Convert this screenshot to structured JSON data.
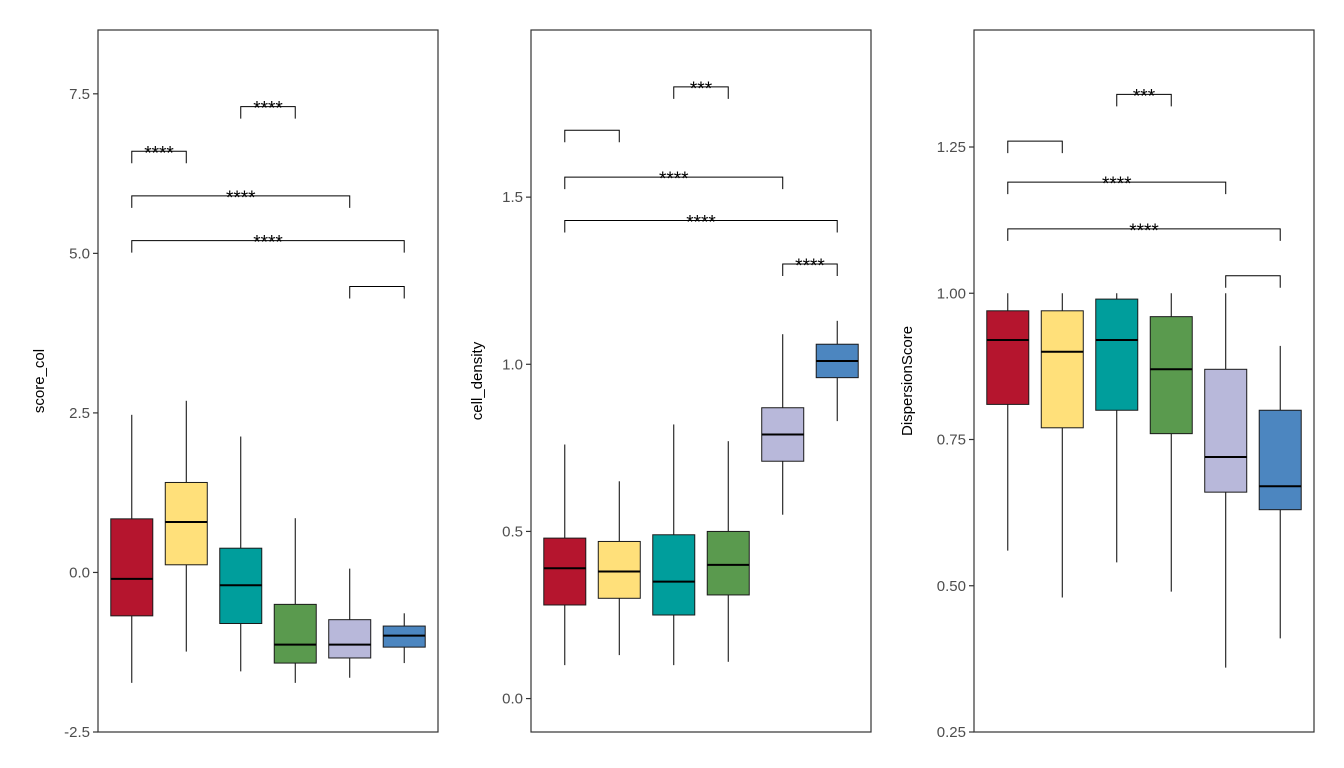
{
  "palette": [
    "#B5152E",
    "#FFE07A",
    "#009E9C",
    "#5A9A4E",
    "#B8B8DA",
    "#4C86C0"
  ],
  "chart_data": [
    {
      "type": "box",
      "ylabel": "score_col",
      "ylim": [
        -2.5,
        8.5
      ],
      "yticks": [
        -2.5,
        0.0,
        2.5,
        5.0,
        7.5
      ],
      "ytick_labels": [
        "-2.5",
        "0.0",
        "2.5",
        "5.0",
        "7.5"
      ],
      "boxes": [
        {
          "min": -1.73,
          "q1": -0.68,
          "median": -0.1,
          "q3": 0.84,
          "max": 2.47
        },
        {
          "min": -1.24,
          "q1": 0.12,
          "median": 0.79,
          "q3": 1.41,
          "max": 2.69
        },
        {
          "min": -1.55,
          "q1": -0.8,
          "median": -0.2,
          "q3": 0.38,
          "max": 2.13
        },
        {
          "min": -1.73,
          "q1": -1.42,
          "median": -1.13,
          "q3": -0.5,
          "max": 0.85
        },
        {
          "min": -1.65,
          "q1": -1.34,
          "median": -1.13,
          "q3": -0.74,
          "max": 0.06
        },
        {
          "min": -1.42,
          "q1": -1.17,
          "median": -0.99,
          "q3": -0.84,
          "max": -0.64
        }
      ],
      "comparisons": [
        {
          "from": 1,
          "to": 2,
          "y": 6.6,
          "label": "****"
        },
        {
          "from": 3,
          "to": 4,
          "y": 7.3,
          "label": "****"
        },
        {
          "from": 1,
          "to": 5,
          "y": 5.9,
          "label": "****"
        },
        {
          "from": 1,
          "to": 6,
          "y": 5.2,
          "label": "****"
        },
        {
          "from": 5,
          "to": 6,
          "y": 4.48,
          "label": ""
        }
      ]
    },
    {
      "type": "box",
      "ylabel": "cell_density",
      "ylim": [
        -0.1,
        2.0
      ],
      "yticks": [
        0.0,
        0.5,
        1.0,
        1.5
      ],
      "ytick_labels": [
        "0.0",
        "0.5",
        "1.0",
        "1.5"
      ],
      "boxes": [
        {
          "min": 0.1,
          "q1": 0.28,
          "median": 0.39,
          "q3": 0.48,
          "max": 0.76
        },
        {
          "min": 0.13,
          "q1": 0.3,
          "median": 0.38,
          "q3": 0.47,
          "max": 0.65
        },
        {
          "min": 0.1,
          "q1": 0.25,
          "median": 0.35,
          "q3": 0.49,
          "max": 0.82
        },
        {
          "min": 0.11,
          "q1": 0.31,
          "median": 0.4,
          "q3": 0.5,
          "max": 0.77
        },
        {
          "min": 0.55,
          "q1": 0.71,
          "median": 0.79,
          "q3": 0.87,
          "max": 1.09
        },
        {
          "min": 0.83,
          "q1": 0.96,
          "median": 1.01,
          "q3": 1.06,
          "max": 1.13
        }
      ],
      "comparisons": [
        {
          "from": 1,
          "to": 2,
          "y": 1.7,
          "label": ""
        },
        {
          "from": 3,
          "to": 4,
          "y": 1.83,
          "label": "***"
        },
        {
          "from": 1,
          "to": 5,
          "y": 1.56,
          "label": "****"
        },
        {
          "from": 1,
          "to": 6,
          "y": 1.43,
          "label": "****"
        },
        {
          "from": 5,
          "to": 6,
          "y": 1.3,
          "label": "****"
        }
      ]
    },
    {
      "type": "box",
      "ylabel": "DispersionScore",
      "ylim": [
        0.25,
        1.45
      ],
      "yticks": [
        0.25,
        0.5,
        0.75,
        1.0,
        1.25
      ],
      "ytick_labels": [
        "0.25",
        "0.50",
        "0.75",
        "1.00",
        "1.25"
      ],
      "boxes": [
        {
          "min": 0.56,
          "q1": 0.81,
          "median": 0.92,
          "q3": 0.97,
          "max": 1.0
        },
        {
          "min": 0.48,
          "q1": 0.77,
          "median": 0.9,
          "q3": 0.97,
          "max": 1.0
        },
        {
          "min": 0.54,
          "q1": 0.8,
          "median": 0.92,
          "q3": 0.99,
          "max": 1.0
        },
        {
          "min": 0.49,
          "q1": 0.76,
          "median": 0.87,
          "q3": 0.96,
          "max": 1.0
        },
        {
          "min": 0.36,
          "q1": 0.66,
          "median": 0.72,
          "q3": 0.87,
          "max": 1.0
        },
        {
          "min": 0.41,
          "q1": 0.63,
          "median": 0.67,
          "q3": 0.8,
          "max": 0.91
        }
      ],
      "comparisons": [
        {
          "from": 1,
          "to": 2,
          "y": 1.26,
          "label": ""
        },
        {
          "from": 3,
          "to": 4,
          "y": 1.34,
          "label": "***"
        },
        {
          "from": 1,
          "to": 5,
          "y": 1.19,
          "label": "****"
        },
        {
          "from": 1,
          "to": 6,
          "y": 1.11,
          "label": "****"
        },
        {
          "from": 5,
          "to": 6,
          "y": 1.03,
          "label": ""
        }
      ]
    }
  ]
}
